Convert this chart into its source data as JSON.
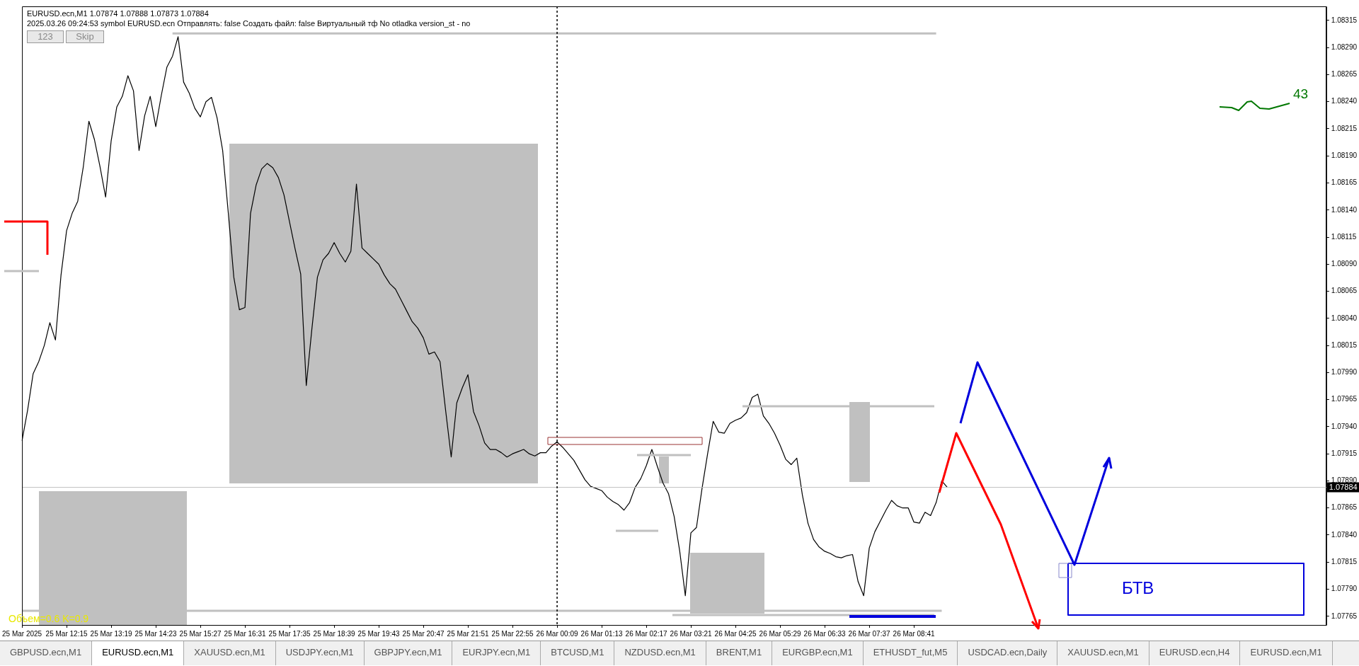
{
  "chart_data": {
    "type": "line",
    "title": "EURUSD.ecn,M1  1.07874 1.07888 1.07873 1.07884",
    "subtitle": "2025.03.26 09:24:53  symbol EURUSD.ecn  Отправлять: false  Создать файл: false  Виртуальный тф No  otladka  version_st - no",
    "annotations": [
      "123",
      "Skip",
      "Объем=0.6 K=0.9",
      "43",
      "БТВ",
      "GBPUSD.ecn,M1",
      "EURUSD.ecn,M1",
      "XAUUSD.ecn,M1",
      "USDJPY.ecn,M1",
      "GBPJPY.ecn,M1",
      "EURJPY.ecn,M1",
      "BTCUSD,M1",
      "NZDUSD.ecn,M1",
      "BRENT,M1",
      "EURGBP.ecn,M1",
      "ETHUSDT_fut,M5",
      "USDCAD.ecn,Daily",
      "XAUUSD.ecn,M1",
      "EURUSD.ecn,H4",
      "EURUSD.ecn,M1"
    ],
    "categories": [
      "25 Mar 2025",
      null,
      null,
      null,
      null,
      null,
      null,
      null,
      "25 Mar 12:15",
      null,
      null,
      null,
      null,
      null,
      null,
      null,
      "25 Mar 13:19",
      null,
      null,
      null,
      null,
      null,
      null,
      null,
      "25 Mar 14:23",
      null,
      null,
      null,
      null,
      null,
      null,
      null,
      "25 Mar 15:27",
      null,
      null,
      null,
      null,
      null,
      null,
      null,
      "25 Mar 16:31",
      null,
      null,
      null,
      null,
      null,
      null,
      null,
      "25 Mar 17:35",
      null,
      null,
      null,
      null,
      null,
      null,
      null,
      "25 Mar 18:39",
      null,
      null,
      null,
      null,
      null,
      null,
      null,
      "25 Mar 19:43",
      null,
      null,
      null,
      null,
      null,
      null,
      null,
      "25 Mar 20:47",
      null,
      null,
      null,
      null,
      null,
      null,
      null,
      "25 Mar 21:51",
      null,
      null,
      null,
      null,
      null,
      null,
      null,
      "25 Mar 22:55",
      null,
      null,
      null,
      null,
      null,
      null,
      null,
      "26 Mar 00:09",
      null,
      null,
      null,
      null,
      null,
      null,
      null,
      "26 Mar 01:13",
      null,
      null,
      null,
      null,
      null,
      null,
      null,
      "26 Mar 02:17",
      null,
      null,
      null,
      null,
      null,
      null,
      null,
      "26 Mar 03:21",
      null,
      null,
      null,
      null,
      null,
      null,
      null,
      "26 Mar 04:25",
      null,
      null,
      null,
      null,
      null,
      null,
      null,
      "26 Mar 05:29",
      null,
      null,
      null,
      null,
      null,
      null,
      null,
      "26 Mar 06:33",
      null,
      null,
      null,
      null,
      null,
      null,
      null,
      "26 Mar 07:37",
      null,
      null,
      null,
      null,
      null,
      null,
      null,
      "26 Mar 08:41",
      null,
      null,
      null,
      null,
      null,
      null,
      null,
      null,
      null,
      null,
      null,
      null,
      null,
      null,
      null,
      null,
      null,
      null,
      null,
      null,
      null,
      null,
      null,
      null,
      null,
      null,
      null,
      null,
      null,
      null,
      null,
      null,
      null,
      null,
      null,
      null,
      null,
      null,
      null,
      null,
      null,
      null,
      null,
      null,
      null,
      null,
      null,
      null,
      null,
      null,
      null,
      null,
      null,
      null,
      null,
      null,
      null,
      null,
      null,
      null,
      null,
      null,
      null,
      null,
      null,
      null,
      null,
      null,
      null,
      null,
      null,
      null,
      null,
      null
    ],
    "series": [
      {
        "color": "#000000",
        "values": [
          1.07927,
          1.07955,
          1.07989,
          1.08,
          1.08015,
          1.08036,
          1.0802,
          1.0808,
          1.08121,
          1.08137,
          1.08148,
          1.0818,
          1.08222,
          1.08205,
          1.0818,
          1.08152,
          1.08204,
          1.08235,
          1.08245,
          1.08264,
          1.0825,
          1.08195,
          1.08227,
          1.08245,
          1.08217,
          1.08246,
          1.08272,
          1.08282,
          1.083,
          1.08258,
          1.08248,
          1.08234,
          1.08226,
          1.0824,
          1.08244,
          1.08225,
          1.08195,
          1.08138,
          1.08078,
          1.08048,
          1.0805,
          1.08137,
          1.08163,
          1.08178,
          1.08183,
          1.08179,
          1.0817,
          1.08154,
          1.08129,
          1.08104,
          1.08081,
          1.07978,
          1.0803,
          1.08078,
          1.08094,
          1.081,
          1.0811,
          1.081,
          1.08092,
          1.08102,
          1.08164,
          1.08105,
          1.081,
          1.08095,
          1.0809,
          1.0808,
          1.08072,
          1.08067,
          1.08057,
          1.08047,
          1.08037,
          1.08031,
          1.08022,
          1.08007,
          1.08009,
          1.08,
          1.07955,
          1.07912,
          1.07962,
          1.07976,
          1.07988,
          1.07954,
          1.07941,
          1.07925,
          1.07919,
          1.07919,
          1.07916,
          1.07912,
          1.07915,
          1.07917,
          1.07919,
          1.07915,
          1.07913,
          1.07916,
          1.07916,
          1.07922,
          1.07926,
          1.07921,
          1.07915,
          1.07909,
          1.079,
          1.07891,
          1.07885,
          1.07883,
          1.07881,
          1.07875,
          1.07871,
          1.07868,
          1.07863,
          1.0787,
          1.07884,
          1.07892,
          1.07904,
          1.07919,
          1.07903,
          1.07888,
          1.07878,
          1.07857,
          1.07825,
          1.07784,
          1.07842,
          1.07847,
          1.07883,
          1.07915,
          1.07945,
          1.07935,
          1.07934,
          1.07943,
          1.07946,
          1.07948,
          1.07953,
          1.07967,
          1.0797,
          1.0795,
          1.07943,
          1.07934,
          1.07923,
          1.0791,
          1.07905,
          1.07911,
          1.07877,
          1.07851,
          1.07836,
          1.07829,
          1.07825,
          1.07823,
          1.0782,
          1.07819,
          1.07821,
          1.07822,
          1.07797,
          1.07784,
          1.07828,
          1.07843,
          1.07853,
          1.07863,
          1.07872,
          1.07867,
          1.07865,
          1.07865,
          1.07852,
          1.07851,
          1.07861,
          1.07858,
          1.0787,
          1.0789,
          1.07884,
          null,
          null,
          null,
          null,
          null,
          null,
          null,
          null,
          null,
          null,
          null,
          null,
          null,
          null,
          null,
          null,
          null,
          null,
          null,
          null,
          null,
          null,
          null,
          null,
          null,
          null,
          null,
          null,
          null,
          null,
          null,
          null,
          null,
          null,
          null,
          null,
          null,
          null,
          null,
          null,
          null,
          null,
          null,
          null,
          null,
          null,
          null,
          null,
          null,
          null,
          null,
          null,
          null,
          null,
          null,
          null,
          null,
          null,
          null,
          null,
          null,
          null,
          null,
          null,
          null,
          null,
          null,
          null
        ]
      },
      {
        "color": "#c0c0c0",
        "values": [
          null,
          null,
          null,
          null,
          null,
          null,
          null,
          null,
          null,
          null,
          null,
          null,
          null,
          null,
          null,
          null,
          null,
          null,
          null,
          null,
          null,
          null,
          null,
          null,
          null,
          null,
          null,
          1.08303,
          null,
          null,
          null,
          null,
          null,
          null,
          null,
          null,
          null,
          null,
          null,
          null,
          null,
          null,
          null,
          null,
          null,
          null,
          null,
          null,
          null,
          null,
          null,
          null,
          null,
          null,
          null,
          null,
          null,
          null,
          null,
          null,
          null,
          null,
          null,
          null,
          null,
          null,
          null,
          null,
          null,
          null,
          null,
          null,
          null,
          null,
          null,
          null,
          null,
          null,
          null,
          null,
          null,
          null,
          null,
          null,
          null,
          null,
          null,
          null,
          null,
          null,
          null,
          null,
          null,
          null,
          null,
          null,
          null,
          null,
          null,
          null,
          null,
          null,
          null,
          null,
          null,
          null,
          null,
          null,
          null,
          null,
          null,
          null,
          null,
          null,
          null,
          null,
          null,
          null,
          null,
          null,
          null,
          null,
          null,
          null,
          null,
          null,
          null,
          null,
          null,
          null,
          null,
          null,
          null,
          null,
          null,
          null,
          null,
          null,
          null,
          null,
          null,
          null,
          null,
          null,
          null,
          null,
          null,
          null,
          null,
          null,
          null,
          null,
          null,
          null,
          null,
          null,
          null,
          null,
          null,
          null,
          null,
          null,
          null,
          null,
          1.08303,
          null,
          null,
          null,
          null,
          null,
          null,
          null,
          null,
          null,
          null,
          null,
          null,
          null,
          null,
          null,
          null,
          null,
          null,
          null,
          null,
          null,
          null,
          null,
          null,
          null,
          null,
          null,
          null,
          null,
          null,
          null,
          null,
          null,
          null,
          null,
          null,
          null,
          null,
          null,
          null,
          null,
          null,
          null,
          null,
          null,
          null,
          null,
          null,
          null,
          null,
          null,
          null,
          null,
          null,
          null,
          null,
          null,
          null,
          null,
          null,
          null,
          null,
          null,
          null,
          null,
          null,
          null,
          null,
          null,
          null
        ]
      },
      {
        "color": "#c0c0c0",
        "values": [
          1.0777,
          null,
          null,
          null,
          null,
          null,
          null,
          null,
          null,
          null,
          null,
          null,
          null,
          null,
          null,
          null,
          null,
          null,
          null,
          null,
          null,
          null,
          null,
          null,
          null,
          null,
          null,
          null,
          null,
          null,
          null,
          null,
          null,
          null,
          null,
          null,
          null,
          null,
          null,
          null,
          null,
          null,
          null,
          null,
          null,
          null,
          null,
          null,
          null,
          null,
          null,
          null,
          null,
          null,
          null,
          null,
          null,
          null,
          null,
          null,
          null,
          null,
          null,
          null,
          null,
          null,
          null,
          null,
          null,
          null,
          null,
          null,
          null,
          null,
          null,
          null,
          null,
          null,
          null,
          null,
          null,
          null,
          null,
          null,
          null,
          null,
          null,
          null,
          null,
          null,
          null,
          null,
          null,
          null,
          null,
          null,
          null,
          null,
          null,
          null,
          null,
          null,
          null,
          null,
          null,
          null,
          null,
          null,
          null,
          null,
          null,
          null,
          null,
          null,
          null,
          null,
          null,
          null,
          null,
          null,
          null,
          null,
          null,
          null,
          null,
          null,
          null,
          null,
          null,
          null,
          null,
          null,
          null,
          null,
          null,
          null,
          null,
          null,
          null,
          null,
          null,
          null,
          null,
          null,
          null,
          null,
          null,
          null,
          null,
          null,
          null,
          null,
          null,
          null,
          null,
          null,
          null,
          null,
          null,
          null,
          null,
          null,
          null,
          null,
          null,
          1.0777,
          null,
          null,
          null,
          null,
          null,
          null,
          null,
          null,
          null,
          null,
          null,
          null,
          null,
          null,
          null,
          null,
          null,
          null,
          null,
          null,
          null,
          null,
          null,
          null,
          null,
          null,
          null,
          null,
          null,
          null,
          null,
          null,
          null,
          null,
          null,
          null,
          null,
          null,
          null,
          null,
          null,
          null,
          null,
          null,
          null,
          null,
          null,
          null,
          null,
          null,
          null,
          null,
          null,
          null,
          null,
          null,
          null,
          null,
          null,
          null,
          null,
          null,
          null,
          null,
          null,
          null,
          null,
          null,
          null
        ]
      }
    ],
    "ylim": [
      1.07757,
      1.08328
    ],
    "yticks": [
      1.07765,
      {
        "value": 1.0779,
        "label": "1.07790"
      },
      1.07815,
      {
        "value": 1.0784,
        "label": "1.07840"
      },
      1.07865,
      {
        "value": 1.0789,
        "label": "1.07890"
      },
      1.07915,
      {
        "value": 1.0794,
        "label": "1.07940"
      },
      1.07965,
      {
        "value": 1.0799,
        "label": "1.07990"
      },
      1.08015,
      {
        "value": 1.0804,
        "label": "1.08040"
      },
      1.08065,
      {
        "value": 1.0809,
        "label": "1.08090"
      },
      1.08115,
      {
        "value": 1.0814,
        "label": "1.08140"
      },
      1.08165,
      {
        "value": 1.0819,
        "label": "1.08190"
      },
      1.08215,
      {
        "value": 1.0824,
        "label": "1.08240"
      },
      1.08265,
      {
        "value": 1.0829,
        "label": "1.08290"
      },
      1.08315
    ],
    "ref_lines": [
      {
        "axis": "y",
        "value": 1.07884,
        "label": "1.07884",
        "color": "#c0c0c0"
      },
      {
        "axis": "x",
        "value": "26 Mar 00:09",
        "color": "#000000",
        "line_style": "dotted"
      }
    ],
    "grid": false,
    "legend": false,
    "marker": "none",
    "line_style": "solid"
  }
}
